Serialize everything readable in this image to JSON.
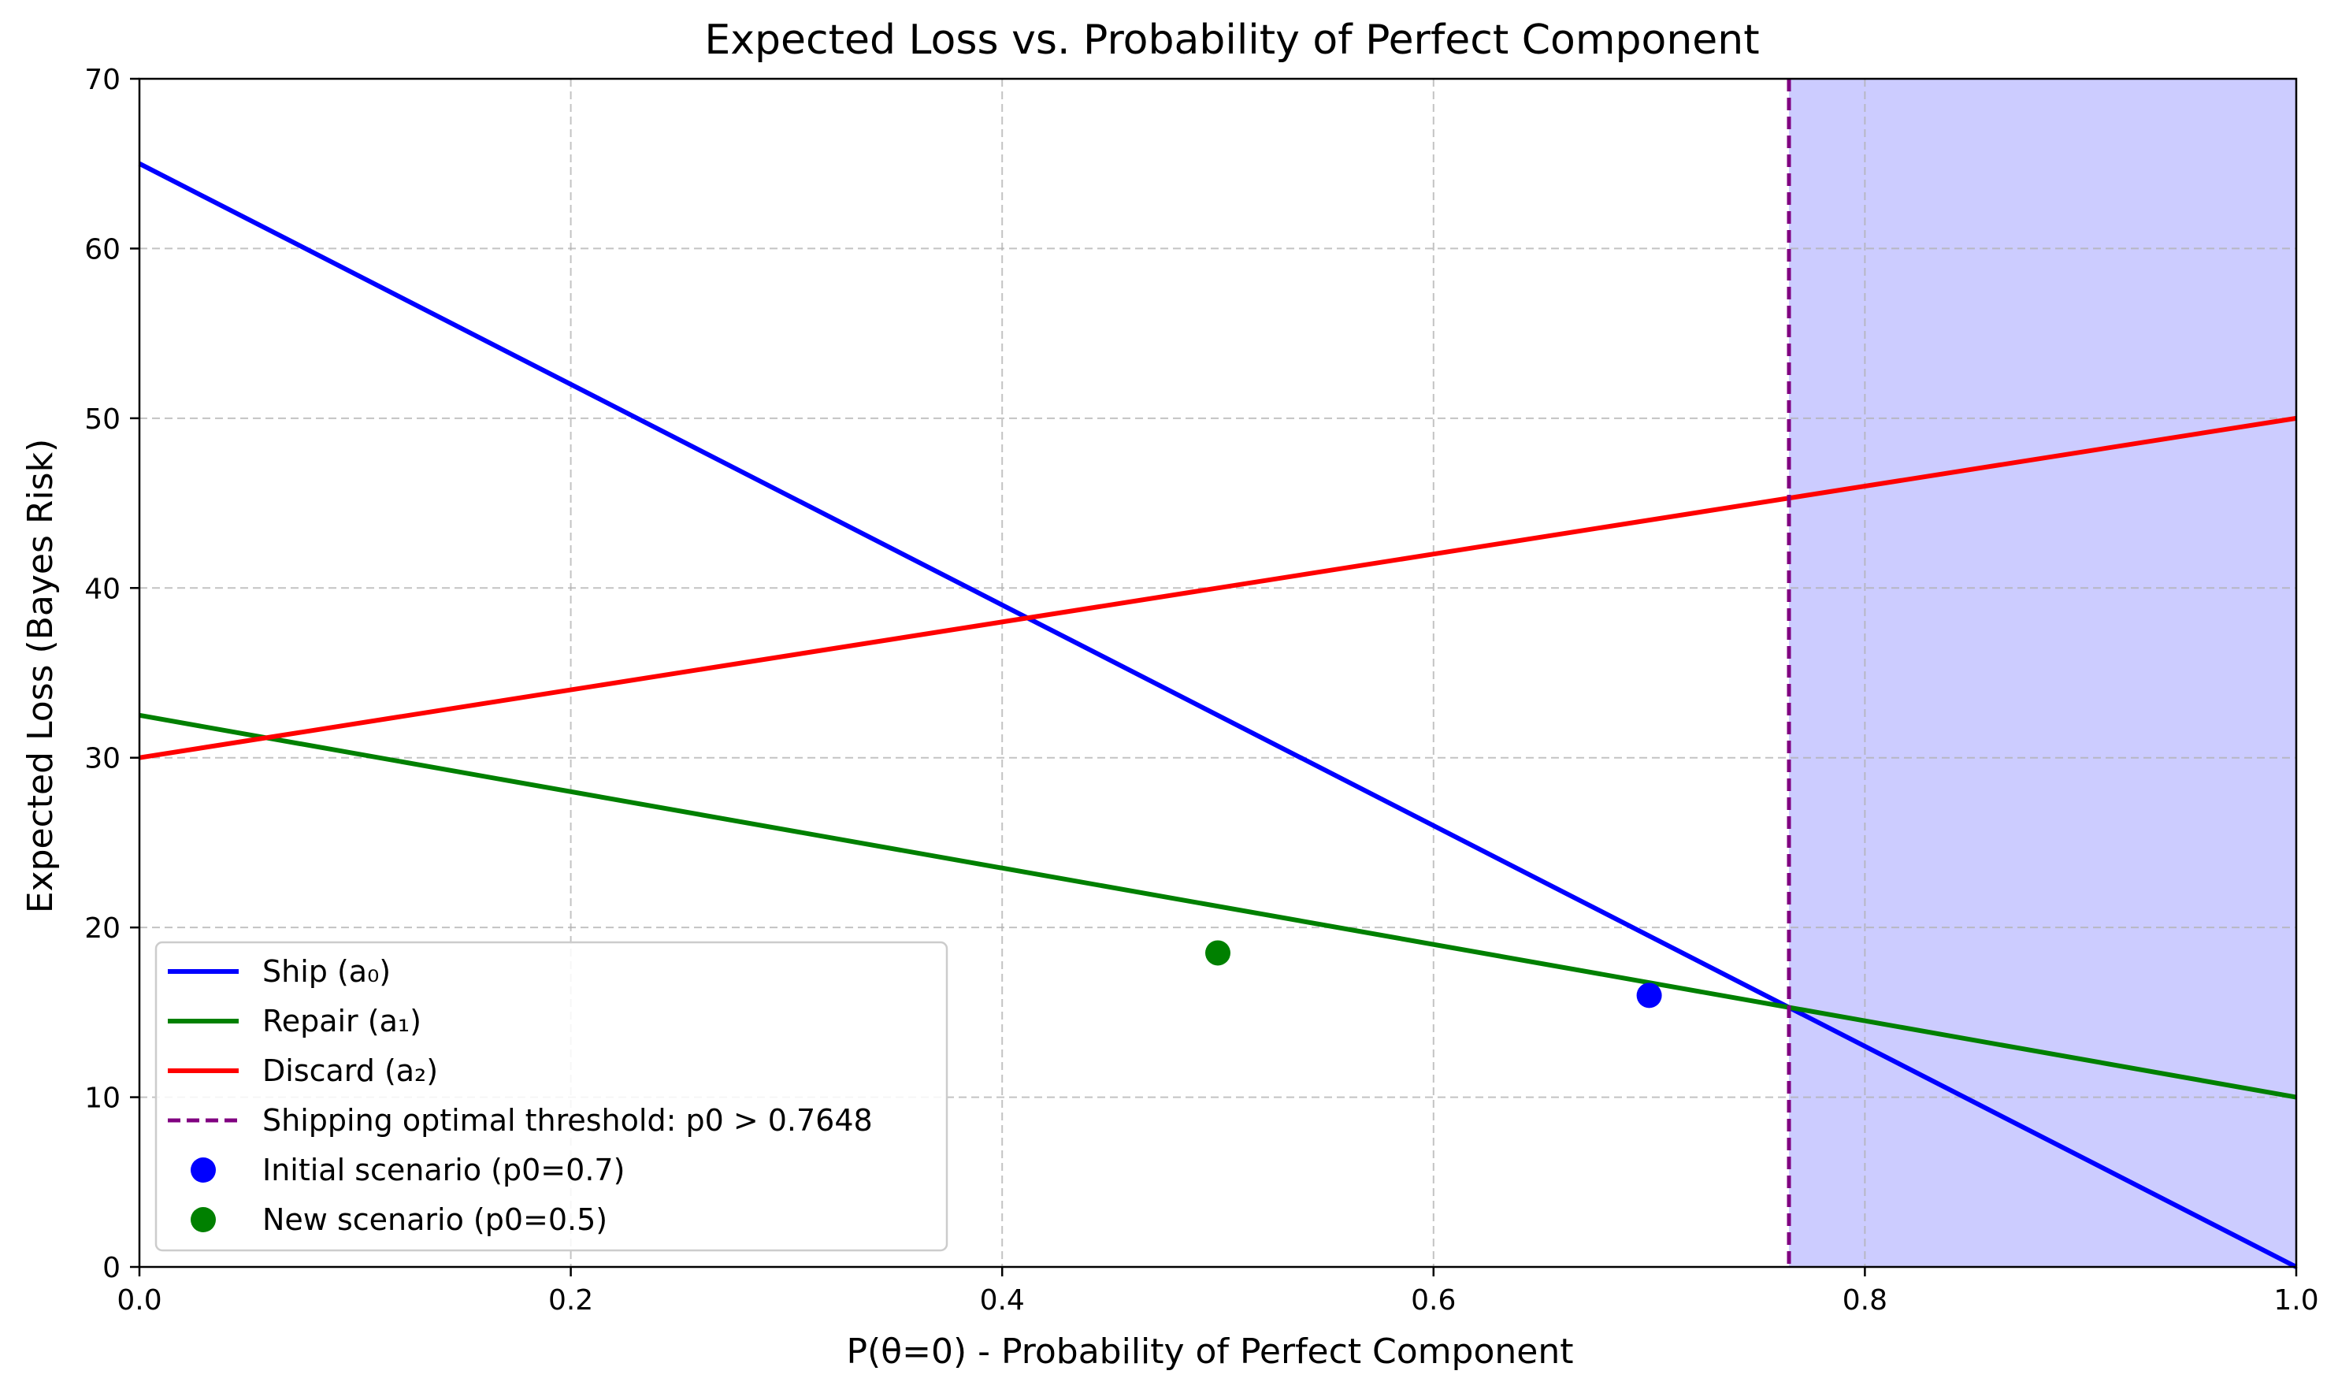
{
  "chart_data": {
    "type": "line",
    "title": "Expected Loss vs. Probability of Perfect Component",
    "xlabel": "P(θ=0) - Probability of Perfect Component",
    "ylabel": "Expected Loss (Bayes Risk)",
    "xlim": [
      0.0,
      1.0
    ],
    "ylim": [
      0,
      70
    ],
    "xticks": [
      0.0,
      0.2,
      0.4,
      0.6,
      0.8,
      1.0
    ],
    "xtick_labels": [
      "0.0",
      "0.2",
      "0.4",
      "0.6",
      "0.8",
      "1.0"
    ],
    "yticks": [
      0,
      10,
      20,
      30,
      40,
      50,
      60,
      70
    ],
    "ytick_labels": [
      "0",
      "10",
      "20",
      "30",
      "40",
      "50",
      "60",
      "70"
    ],
    "grid": true,
    "legend_position": "lower-left",
    "series": [
      {
        "name": "Ship (a₀)",
        "kind": "line",
        "color": "#0000ff",
        "x": [
          0.0,
          1.0
        ],
        "y": [
          65.0,
          0.0
        ]
      },
      {
        "name": "Repair (a₁)",
        "kind": "line",
        "color": "#008000",
        "x": [
          0.0,
          1.0
        ],
        "y": [
          32.5,
          10.0
        ]
      },
      {
        "name": "Discard (a₂)",
        "kind": "line",
        "color": "#ff0000",
        "x": [
          0.0,
          1.0
        ],
        "y": [
          30.0,
          50.0
        ]
      },
      {
        "name": "Shipping optimal threshold: p0 > 0.7648",
        "kind": "vline",
        "color": "#800080",
        "x": 0.7648
      },
      {
        "name": "Initial scenario (p0=0.7)",
        "kind": "point",
        "color": "#0000ff",
        "x": 0.7,
        "y": 16.0
      },
      {
        "name": "New scenario (p0=0.5)",
        "kind": "point",
        "color": "#008000",
        "x": 0.5,
        "y": 18.5
      }
    ],
    "shaded_region": {
      "x": [
        0.7648,
        1.0
      ],
      "color": "#ccccff"
    }
  }
}
